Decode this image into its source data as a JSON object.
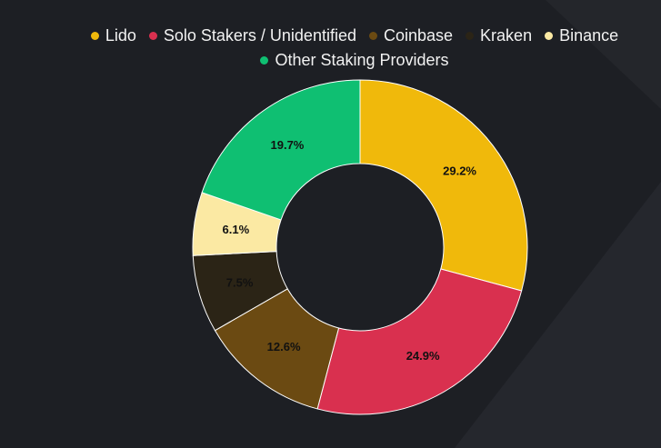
{
  "chart_data": {
    "type": "pie",
    "donut": true,
    "title": "",
    "legend_position": "top",
    "start_angle_deg": 0,
    "direction": "clockwise",
    "slices": [
      {
        "name": "Lido",
        "value": 29.2,
        "label": "29.2%",
        "color": "#f0b90b"
      },
      {
        "name": "Solo Stakers / Unidentified",
        "value": 24.9,
        "label": "24.9%",
        "color": "#d9304f"
      },
      {
        "name": "Coinbase",
        "value": 12.6,
        "label": "12.6%",
        "color": "#6b4a12"
      },
      {
        "name": "Kraken",
        "value": 7.5,
        "label": "7.5%",
        "color": "#2b2416"
      },
      {
        "name": "Binance",
        "value": 6.1,
        "label": "6.1%",
        "color": "#fbe9a3"
      },
      {
        "name": "Other Staking Providers",
        "value": 19.7,
        "label": "19.7%",
        "color": "#0fbf72"
      }
    ]
  },
  "colors": {
    "background": "#1d1f24",
    "legend_text": "#f2f2f2",
    "slice_label_text": "#111111"
  }
}
